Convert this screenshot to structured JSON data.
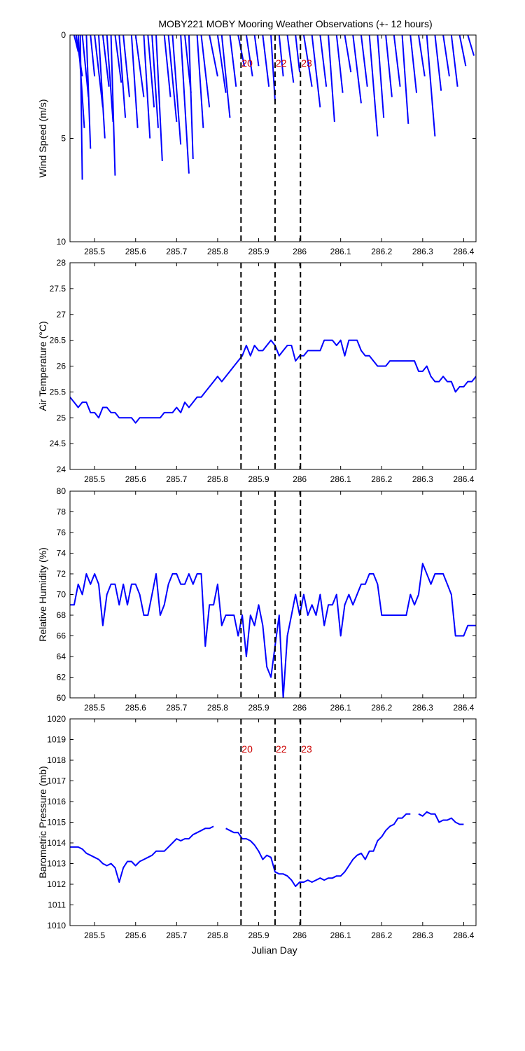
{
  "title": "MOBY221 MOBY Mooring Weather Observations (+- 12 hours)",
  "xlabel": "Julian Day",
  "colors": {
    "series": "#0000ff",
    "marker_label": "#cc0000",
    "marker_line": "#000000"
  },
  "chart_data": [
    {
      "type": "stick",
      "id": "wind",
      "ylabel": "Wind Speed (m/s)",
      "xlim": [
        285.44,
        286.43
      ],
      "ylim": [
        0,
        10
      ],
      "y_reversed": true,
      "yticks": [
        0,
        5,
        10
      ],
      "xticks": [
        285.5,
        285.6,
        285.7,
        285.8,
        285.9,
        286,
        286.1,
        286.2,
        286.3,
        286.4
      ],
      "markers": [
        {
          "x": 285.857,
          "label": "20"
        },
        {
          "x": 285.94,
          "label": "22"
        },
        {
          "x": 286.002,
          "label": "23"
        }
      ],
      "sticks": [
        {
          "x0": 285.45,
          "x1": 285.46,
          "y": 0.8
        },
        {
          "x0": 285.455,
          "x1": 285.47,
          "y": 2.0
        },
        {
          "x0": 285.46,
          "x1": 285.475,
          "y": 4.5
        },
        {
          "x0": 285.465,
          "x1": 285.47,
          "y": 7.0
        },
        {
          "x0": 285.47,
          "x1": 285.485,
          "y": 3.0
        },
        {
          "x0": 285.48,
          "x1": 285.49,
          "y": 5.5
        },
        {
          "x0": 285.49,
          "x1": 285.5,
          "y": 2.0
        },
        {
          "x0": 285.5,
          "x1": 285.52,
          "y": 3.5
        },
        {
          "x0": 285.51,
          "x1": 285.525,
          "y": 5.0
        },
        {
          "x0": 285.52,
          "x1": 285.535,
          "y": 2.5
        },
        {
          "x0": 285.53,
          "x1": 285.545,
          "y": 4.2
        },
        {
          "x0": 285.54,
          "x1": 285.55,
          "y": 6.8
        },
        {
          "x0": 285.55,
          "x1": 285.565,
          "y": 2.3
        },
        {
          "x0": 285.56,
          "x1": 285.575,
          "y": 4.0
        },
        {
          "x0": 285.57,
          "x1": 285.585,
          "y": 3.0
        },
        {
          "x0": 285.59,
          "x1": 285.605,
          "y": 4.5
        },
        {
          "x0": 285.6,
          "x1": 285.62,
          "y": 3.0
        },
        {
          "x0": 285.62,
          "x1": 285.635,
          "y": 5.0
        },
        {
          "x0": 285.63,
          "x1": 285.645,
          "y": 3.5
        },
        {
          "x0": 285.64,
          "x1": 285.655,
          "y": 4.5
        },
        {
          "x0": 285.65,
          "x1": 285.665,
          "y": 6.1
        },
        {
          "x0": 285.67,
          "x1": 285.685,
          "y": 3.0
        },
        {
          "x0": 285.68,
          "x1": 285.7,
          "y": 4.2
        },
        {
          "x0": 285.69,
          "x1": 285.71,
          "y": 5.3
        },
        {
          "x0": 285.71,
          "x1": 285.73,
          "y": 6.7
        },
        {
          "x0": 285.72,
          "x1": 285.735,
          "y": 2.8
        },
        {
          "x0": 285.73,
          "x1": 285.74,
          "y": 6.0
        },
        {
          "x0": 285.75,
          "x1": 285.765,
          "y": 4.5
        },
        {
          "x0": 285.76,
          "x1": 285.78,
          "y": 3.5
        },
        {
          "x0": 285.78,
          "x1": 285.8,
          "y": 2.0
        },
        {
          "x0": 285.8,
          "x1": 285.82,
          "y": 2.8
        },
        {
          "x0": 285.81,
          "x1": 285.83,
          "y": 4.0
        },
        {
          "x0": 285.83,
          "x1": 285.845,
          "y": 2.5
        },
        {
          "x0": 285.85,
          "x1": 285.865,
          "y": 1.5
        },
        {
          "x0": 285.87,
          "x1": 285.885,
          "y": 2.0
        },
        {
          "x0": 285.89,
          "x1": 285.9,
          "y": 1.5
        },
        {
          "x0": 285.91,
          "x1": 285.925,
          "y": 2.5
        },
        {
          "x0": 285.93,
          "x1": 285.94,
          "y": 3.2
        },
        {
          "x0": 285.95,
          "x1": 285.96,
          "y": 2.0
        },
        {
          "x0": 285.97,
          "x1": 285.985,
          "y": 2.3
        },
        {
          "x0": 285.99,
          "x1": 286.0,
          "y": 1.8
        },
        {
          "x0": 286.01,
          "x1": 286.03,
          "y": 2.5
        },
        {
          "x0": 286.03,
          "x1": 286.05,
          "y": 3.5
        },
        {
          "x0": 286.05,
          "x1": 286.065,
          "y": 2.5
        },
        {
          "x0": 286.07,
          "x1": 286.085,
          "y": 4.2
        },
        {
          "x0": 286.09,
          "x1": 286.105,
          "y": 2.8
        },
        {
          "x0": 286.11,
          "x1": 286.125,
          "y": 1.8
        },
        {
          "x0": 286.13,
          "x1": 286.15,
          "y": 3.3
        },
        {
          "x0": 286.15,
          "x1": 286.165,
          "y": 2.5
        },
        {
          "x0": 286.17,
          "x1": 286.19,
          "y": 4.9
        },
        {
          "x0": 286.19,
          "x1": 286.205,
          "y": 4.0
        },
        {
          "x0": 286.21,
          "x1": 286.225,
          "y": 3.0
        },
        {
          "x0": 286.23,
          "x1": 286.245,
          "y": 2.5
        },
        {
          "x0": 286.25,
          "x1": 286.265,
          "y": 4.3
        },
        {
          "x0": 286.27,
          "x1": 286.285,
          "y": 2.8
        },
        {
          "x0": 286.29,
          "x1": 286.305,
          "y": 2.0
        },
        {
          "x0": 286.31,
          "x1": 286.33,
          "y": 4.9
        },
        {
          "x0": 286.33,
          "x1": 286.345,
          "y": 2.7
        },
        {
          "x0": 286.35,
          "x1": 286.365,
          "y": 2.0
        },
        {
          "x0": 286.37,
          "x1": 286.385,
          "y": 2.5
        },
        {
          "x0": 286.39,
          "x1": 286.405,
          "y": 1.5
        },
        {
          "x0": 286.41,
          "x1": 286.425,
          "y": 1.0
        }
      ]
    },
    {
      "type": "line",
      "id": "airtemp",
      "ylabel": "Air Temperature (°C)",
      "xlim": [
        285.44,
        286.43
      ],
      "ylim": [
        24,
        28
      ],
      "yticks": [
        24,
        24.5,
        25,
        25.5,
        26,
        26.5,
        27,
        27.5,
        28
      ],
      "xticks": [
        285.5,
        285.6,
        285.7,
        285.8,
        285.9,
        286,
        286.1,
        286.2,
        286.3,
        286.4
      ],
      "markers": [
        {
          "x": 285.857,
          "label": ""
        },
        {
          "x": 285.94,
          "label": ""
        },
        {
          "x": 286.002,
          "label": ""
        }
      ],
      "x": [
        285.44,
        285.45,
        285.46,
        285.47,
        285.48,
        285.49,
        285.5,
        285.51,
        285.52,
        285.53,
        285.54,
        285.55,
        285.56,
        285.57,
        285.58,
        285.59,
        285.6,
        285.61,
        285.62,
        285.63,
        285.64,
        285.65,
        285.66,
        285.67,
        285.68,
        285.69,
        285.7,
        285.71,
        285.72,
        285.73,
        285.74,
        285.75,
        285.76,
        285.77,
        285.78,
        285.79,
        285.8,
        285.81,
        285.82,
        285.83,
        285.84,
        285.85,
        285.86,
        285.87,
        285.88,
        285.89,
        285.9,
        285.91,
        285.92,
        285.93,
        285.94,
        285.95,
        285.96,
        285.97,
        285.98,
        285.99,
        286.0,
        286.01,
        286.02,
        286.03,
        286.04,
        286.05,
        286.06,
        286.07,
        286.08,
        286.09,
        286.1,
        286.11,
        286.12,
        286.13,
        286.14,
        286.15,
        286.16,
        286.17,
        286.18,
        286.19,
        286.2,
        286.21,
        286.22,
        286.23,
        286.24,
        286.25,
        286.26,
        286.27,
        286.28,
        286.29,
        286.3,
        286.31,
        286.32,
        286.33,
        286.34,
        286.35,
        286.36,
        286.37,
        286.38,
        286.39,
        286.4,
        286.41,
        286.42,
        286.43
      ],
      "y": [
        25.4,
        25.3,
        25.2,
        25.3,
        25.3,
        25.1,
        25.1,
        25.0,
        25.2,
        25.2,
        25.1,
        25.1,
        25.0,
        25.0,
        25.0,
        25.0,
        24.9,
        25.0,
        25.0,
        25.0,
        25.0,
        25.0,
        25.0,
        25.1,
        25.1,
        25.1,
        25.2,
        25.1,
        25.3,
        25.2,
        25.3,
        25.4,
        25.4,
        25.5,
        25.6,
        25.7,
        25.8,
        25.7,
        25.8,
        25.9,
        26.0,
        26.1,
        26.2,
        26.4,
        26.2,
        26.4,
        26.3,
        26.3,
        26.4,
        26.5,
        26.4,
        26.2,
        26.3,
        26.4,
        26.4,
        26.1,
        26.2,
        26.2,
        26.3,
        26.3,
        26.3,
        26.3,
        26.5,
        26.5,
        26.5,
        26.4,
        26.5,
        26.2,
        26.5,
        26.5,
        26.5,
        26.3,
        26.2,
        26.2,
        26.1,
        26.0,
        26.0,
        26.0,
        26.1,
        26.1,
        26.1,
        26.1,
        26.1,
        26.1,
        26.1,
        25.9,
        25.9,
        26.0,
        25.8,
        25.7,
        25.7,
        25.8,
        25.7,
        25.7,
        25.5,
        25.6,
        25.6,
        25.7,
        25.7,
        25.8
      ]
    },
    {
      "type": "line",
      "id": "humidity",
      "ylabel": "Relative Humidity (%)",
      "xlim": [
        285.44,
        286.43
      ],
      "ylim": [
        60,
        80
      ],
      "yticks": [
        60,
        62,
        64,
        66,
        68,
        70,
        72,
        74,
        76,
        78,
        80
      ],
      "xticks": [
        285.5,
        285.6,
        285.7,
        285.8,
        285.9,
        286,
        286.1,
        286.2,
        286.3,
        286.4
      ],
      "markers": [
        {
          "x": 285.857,
          "label": ""
        },
        {
          "x": 285.94,
          "label": ""
        },
        {
          "x": 286.002,
          "label": ""
        }
      ],
      "x": [
        285.44,
        285.45,
        285.46,
        285.47,
        285.48,
        285.49,
        285.5,
        285.51,
        285.52,
        285.53,
        285.54,
        285.55,
        285.56,
        285.57,
        285.58,
        285.59,
        285.6,
        285.61,
        285.62,
        285.63,
        285.64,
        285.65,
        285.66,
        285.67,
        285.68,
        285.69,
        285.7,
        285.71,
        285.72,
        285.73,
        285.74,
        285.75,
        285.76,
        285.77,
        285.78,
        285.79,
        285.8,
        285.81,
        285.82,
        285.83,
        285.84,
        285.85,
        285.86,
        285.87,
        285.88,
        285.89,
        285.9,
        285.91,
        285.92,
        285.93,
        285.94,
        285.95,
        285.96,
        285.97,
        285.98,
        285.99,
        286.0,
        286.01,
        286.02,
        286.03,
        286.04,
        286.05,
        286.06,
        286.07,
        286.08,
        286.09,
        286.1,
        286.11,
        286.12,
        286.13,
        286.14,
        286.15,
        286.16,
        286.17,
        286.18,
        286.19,
        286.2,
        286.21,
        286.22,
        286.23,
        286.24,
        286.25,
        286.26,
        286.27,
        286.28,
        286.29,
        286.3,
        286.31,
        286.32,
        286.33,
        286.34,
        286.35,
        286.36,
        286.37,
        286.38,
        286.39,
        286.4,
        286.41,
        286.42,
        286.43
      ],
      "y": [
        69,
        69,
        71,
        70,
        72,
        71,
        72,
        71,
        67,
        70,
        71,
        71,
        69,
        71,
        69,
        71,
        71,
        70,
        68,
        68,
        70,
        72,
        68,
        69,
        71,
        72,
        72,
        71,
        71,
        72,
        71,
        72,
        72,
        65,
        69,
        69,
        71,
        67,
        68,
        68,
        68,
        66,
        68,
        64,
        68,
        67,
        69,
        67,
        63,
        62,
        65,
        68,
        60,
        66,
        68,
        70,
        68,
        70,
        68,
        69,
        68,
        70,
        67,
        69,
        69,
        70,
        66,
        69,
        70,
        69,
        70,
        71,
        71,
        72,
        72,
        71,
        68,
        68,
        68,
        68,
        68,
        68,
        68,
        70,
        69,
        70,
        73,
        72,
        71,
        72,
        72,
        72,
        71,
        70,
        66,
        66,
        66,
        67,
        67,
        67
      ]
    },
    {
      "type": "line",
      "id": "pressure",
      "ylabel": "Barometric Pressure (mb)",
      "xlim": [
        285.44,
        286.43
      ],
      "ylim": [
        1010,
        1020
      ],
      "yticks": [
        1010,
        1011,
        1012,
        1013,
        1014,
        1015,
        1016,
        1017,
        1018,
        1019,
        1020
      ],
      "xticks": [
        285.5,
        285.6,
        285.7,
        285.8,
        285.9,
        286,
        286.1,
        286.2,
        286.3,
        286.4
      ],
      "markers": [
        {
          "x": 285.857,
          "label": "20"
        },
        {
          "x": 285.94,
          "label": "22"
        },
        {
          "x": 286.002,
          "label": "23"
        }
      ],
      "x": [
        285.44,
        285.45,
        285.46,
        285.47,
        285.48,
        285.49,
        285.5,
        285.51,
        285.52,
        285.53,
        285.54,
        285.55,
        285.56,
        285.57,
        285.58,
        285.59,
        285.6,
        285.61,
        285.62,
        285.63,
        285.64,
        285.65,
        285.66,
        285.67,
        285.68,
        285.69,
        285.7,
        285.71,
        285.72,
        285.73,
        285.74,
        285.75,
        285.76,
        285.77,
        285.78,
        285.79,
        285.8,
        285.81,
        285.82,
        285.83,
        285.84,
        285.85,
        285.86,
        285.87,
        285.88,
        285.89,
        285.9,
        285.91,
        285.92,
        285.93,
        285.94,
        285.95,
        285.96,
        285.97,
        285.98,
        285.99,
        286.0,
        286.01,
        286.02,
        286.03,
        286.04,
        286.05,
        286.06,
        286.07,
        286.08,
        286.09,
        286.1,
        286.11,
        286.12,
        286.13,
        286.14,
        286.15,
        286.16,
        286.17,
        286.18,
        286.19,
        286.2,
        286.21,
        286.22,
        286.23,
        286.24,
        286.25,
        286.26,
        286.27,
        286.28,
        286.29,
        286.3,
        286.31,
        286.32,
        286.33,
        286.34,
        286.35,
        286.36,
        286.37,
        286.38,
        286.39,
        286.4,
        286.41,
        286.42,
        286.43
      ],
      "y": [
        1013.8,
        1013.8,
        1013.8,
        1013.7,
        1013.5,
        1013.4,
        1013.3,
        1013.2,
        1013.0,
        1012.9,
        1013.0,
        1012.8,
        1012.1,
        1012.8,
        1013.1,
        1013.1,
        1012.9,
        1013.1,
        1013.2,
        1013.3,
        1013.4,
        1013.6,
        1013.6,
        1013.6,
        1013.8,
        1014.0,
        1014.2,
        1014.1,
        1014.2,
        1014.2,
        1014.4,
        1014.5,
        1014.6,
        1014.7,
        1014.7,
        1014.8,
        null,
        null,
        1014.7,
        1014.6,
        1014.5,
        1014.5,
        1014.2,
        1014.2,
        1014.1,
        1013.9,
        1013.6,
        1013.2,
        1013.4,
        1013.3,
        1012.6,
        1012.5,
        1012.5,
        1012.4,
        1012.2,
        1011.9,
        1012.1,
        1012.1,
        1012.2,
        1012.1,
        1012.2,
        1012.3,
        1012.2,
        1012.3,
        1012.3,
        1012.4,
        1012.4,
        1012.6,
        1012.9,
        1013.2,
        1013.4,
        1013.5,
        1013.2,
        1013.6,
        1013.6,
        1014.1,
        1014.3,
        1014.6,
        1014.8,
        1014.9,
        1015.2,
        1015.2,
        1015.4,
        1015.4,
        null,
        1015.4,
        1015.3,
        1015.5,
        1015.4,
        1015.4,
        1015.0,
        1015.1,
        1015.1,
        1015.2,
        1015.0,
        1014.9,
        1014.9,
        null,
        null,
        null
      ]
    }
  ]
}
